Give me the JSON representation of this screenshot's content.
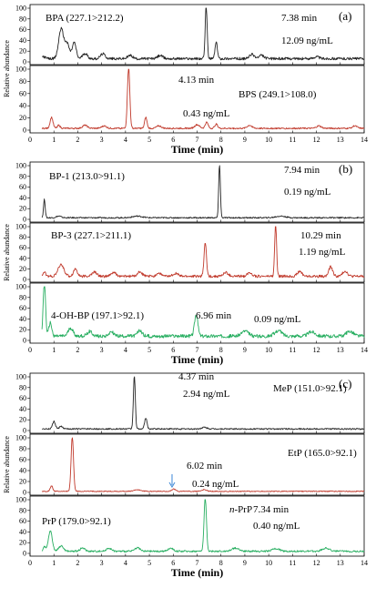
{
  "chart_data": [
    {
      "panel": "(a)",
      "type": "line",
      "xlabel": "Time (min)",
      "ylabel": "Relative abundance",
      "xlim": [
        0,
        14
      ],
      "ylim": [
        0,
        100
      ],
      "x_ticks": [
        "0",
        "1",
        "2",
        "3",
        "4",
        "5",
        "6",
        "7",
        "8",
        "9",
        "10",
        "11",
        "12",
        "13",
        "14"
      ],
      "y_ticks": [
        "0",
        "20",
        "40",
        "60",
        "80",
        "100"
      ],
      "series": [
        {
          "name": "BPA (227.1>212.2)",
          "color": "#222222",
          "baseline": 6,
          "peaks": [
            [
              0.55,
              4,
              0.08
            ],
            [
              1.3,
              55,
              0.1
            ],
            [
              1.55,
              28,
              0.1
            ],
            [
              1.85,
              30,
              0.08
            ],
            [
              2.3,
              10,
              0.1
            ],
            [
              3.05,
              9,
              0.1
            ],
            [
              4.2,
              6,
              0.1
            ],
            [
              5.45,
              6,
              0.1
            ],
            [
              7.38,
              100,
              0.04
            ],
            [
              7.8,
              30,
              0.05
            ],
            [
              9.3,
              8,
              0.1
            ],
            [
              9.7,
              6,
              0.1
            ],
            [
              12.0,
              4,
              0.1
            ]
          ],
          "annotations": [
            {
              "text": "BPA (227.1>212.2)"
            },
            {
              "text": "7.38 min"
            },
            {
              "text": "12.09 ng/mL"
            }
          ]
        },
        {
          "name": "BPS (249.1>108.0)",
          "color": "#c0392b",
          "baseline": 3,
          "peaks": [
            [
              0.9,
              18,
              0.06
            ],
            [
              1.2,
              5,
              0.06
            ],
            [
              2.3,
              5,
              0.1
            ],
            [
              3.1,
              4,
              0.1
            ],
            [
              4.13,
              100,
              0.05
            ],
            [
              4.85,
              18,
              0.05
            ],
            [
              5.4,
              4,
              0.1
            ],
            [
              7.0,
              6,
              0.1
            ],
            [
              7.4,
              10,
              0.06
            ],
            [
              7.8,
              7,
              0.06
            ],
            [
              9.2,
              5,
              0.1
            ],
            [
              12.1,
              4,
              0.1
            ],
            [
              13.6,
              4,
              0.1
            ]
          ],
          "annotations": [
            {
              "text": "4.13 min"
            },
            {
              "text": "BPS (249.1>108.0)"
            },
            {
              "text": "0.43 ng/mL"
            }
          ]
        }
      ]
    },
    {
      "panel": "(b)",
      "type": "line",
      "xlabel": "Time (min)",
      "ylabel": "Relative abundance",
      "xlim": [
        0,
        14
      ],
      "ylim": [
        0,
        100
      ],
      "x_ticks": [
        "0",
        "1",
        "2",
        "3",
        "4",
        "5",
        "6",
        "7",
        "8",
        "9",
        "10",
        "11",
        "12",
        "13",
        "14"
      ],
      "y_ticks": [
        "0",
        "20",
        "40",
        "60",
        "80",
        "100"
      ],
      "series": [
        {
          "name": "BP-1 (213.0>91.1)",
          "color": "#222222",
          "baseline": 3,
          "peaks": [
            [
              0.6,
              34,
              0.035
            ],
            [
              1.2,
              3,
              0.1
            ],
            [
              4.5,
              3,
              0.2
            ],
            [
              7.94,
              100,
              0.035
            ],
            [
              10.5,
              3,
              0.2
            ]
          ],
          "annotations": [
            {
              "text": "BP-1 (213.0>91.1)"
            },
            {
              "text": "7.94 min"
            },
            {
              "text": "0.19 ng/mL"
            }
          ]
        },
        {
          "name": "BP-3 (227.1>211.1)",
          "color": "#c0392b",
          "baseline": 6,
          "peaks": [
            [
              0.6,
              8,
              0.05
            ],
            [
              1.3,
              22,
              0.12
            ],
            [
              1.9,
              14,
              0.08
            ],
            [
              2.7,
              8,
              0.1
            ],
            [
              3.5,
              7,
              0.1
            ],
            [
              4.6,
              8,
              0.1
            ],
            [
              5.4,
              6,
              0.1
            ],
            [
              6.1,
              6,
              0.1
            ],
            [
              7.34,
              64,
              0.05
            ],
            [
              8.2,
              7,
              0.1
            ],
            [
              9.2,
              7,
              0.1
            ],
            [
              10.29,
              100,
              0.04
            ],
            [
              11.3,
              9,
              0.1
            ],
            [
              12.6,
              18,
              0.08
            ],
            [
              13.2,
              10,
              0.1
            ]
          ],
          "annotations": [
            {
              "text": "BP-3 (227.1>211.1)"
            },
            {
              "text": "10.29 min"
            },
            {
              "text": "1.19 ng/mL"
            }
          ]
        },
        {
          "name": "4-OH-BP (197.1>92.1)",
          "color": "#27ae60",
          "baseline": 8,
          "peaks": [
            [
              0.6,
              100,
              0.05
            ],
            [
              0.85,
              25,
              0.06
            ],
            [
              1.7,
              15,
              0.1
            ],
            [
              2.5,
              9,
              0.1
            ],
            [
              3.4,
              8,
              0.1
            ],
            [
              4.6,
              10,
              0.1
            ],
            [
              6.96,
              40,
              0.07
            ],
            [
              9.0,
              9,
              0.15
            ],
            [
              10.4,
              10,
              0.15
            ],
            [
              11.8,
              8,
              0.15
            ],
            [
              13.4,
              9,
              0.15
            ]
          ],
          "annotations": [
            {
              "text": "4-OH-BP (197.1>92.1)"
            },
            {
              "text": "6.96 min"
            },
            {
              "text": "0.09 ng/mL"
            }
          ]
        }
      ]
    },
    {
      "panel": "(c)",
      "type": "line",
      "xlabel": "Time (min)",
      "ylabel": "Relative abundance",
      "xlim": [
        0,
        14
      ],
      "ylim": [
        0,
        100
      ],
      "x_ticks": [
        "0",
        "1",
        "2",
        "3",
        "4",
        "5",
        "6",
        "7",
        "8",
        "9",
        "10",
        "11",
        "12",
        "13",
        "14"
      ],
      "y_ticks": [
        "0",
        "20",
        "40",
        "60",
        "80",
        "100"
      ],
      "series": [
        {
          "name": "MeP (151.0>92.1)",
          "color": "#222222",
          "baseline": 3,
          "peaks": [
            [
              1.0,
              14,
              0.06
            ],
            [
              1.3,
              5,
              0.06
            ],
            [
              4.37,
              100,
              0.04
            ],
            [
              4.85,
              20,
              0.05
            ],
            [
              7.3,
              3,
              0.1
            ]
          ],
          "annotations": [
            {
              "text": "4.37 min"
            },
            {
              "text": "2.94 ng/mL"
            },
            {
              "text": "MeP (151.0>92.1)"
            }
          ]
        },
        {
          "name": "EtP (165.0>92.1)",
          "color": "#c0392b",
          "baseline": 2,
          "peaks": [
            [
              0.9,
              10,
              0.05
            ],
            [
              1.77,
              100,
              0.05
            ],
            [
              4.5,
              3,
              0.15
            ],
            [
              6.02,
              4,
              0.08
            ],
            [
              7.3,
              3,
              0.1
            ]
          ],
          "annotations": [
            {
              "text": "6.02 min"
            },
            {
              "text": "EtP (165.0>92.1)"
            },
            {
              "text": "0.24 ng/mL"
            }
          ]
        },
        {
          "name": "PrP (179.0>92.1)",
          "color": "#27ae60",
          "baseline": 4,
          "peaks": [
            [
              0.6,
              8,
              0.05
            ],
            [
              0.85,
              38,
              0.08
            ],
            [
              1.3,
              10,
              0.1
            ],
            [
              2.2,
              6,
              0.1
            ],
            [
              3.3,
              6,
              0.1
            ],
            [
              4.5,
              7,
              0.1
            ],
            [
              5.9,
              6,
              0.1
            ],
            [
              7.34,
              100,
              0.05
            ],
            [
              8.6,
              6,
              0.15
            ],
            [
              10.3,
              5,
              0.15
            ],
            [
              12.4,
              6,
              0.15
            ]
          ],
          "annotations": [
            {
              "text": "n-PrP"
            },
            {
              "text": "7.34 min"
            },
            {
              "text": "0.40 ng/mL"
            },
            {
              "text": "PrP (179.0>92.1)"
            }
          ]
        }
      ]
    }
  ]
}
